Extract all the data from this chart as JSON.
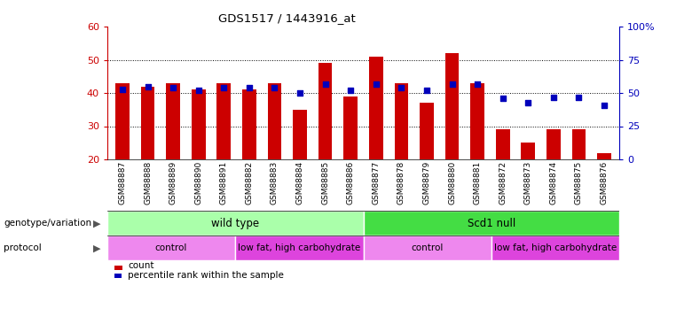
{
  "title": "GDS1517 / 1443916_at",
  "samples": [
    "GSM88887",
    "GSM88888",
    "GSM88889",
    "GSM88890",
    "GSM88891",
    "GSM88882",
    "GSM88883",
    "GSM88884",
    "GSM88885",
    "GSM88886",
    "GSM88877",
    "GSM88878",
    "GSM88879",
    "GSM88880",
    "GSM88881",
    "GSM88872",
    "GSM88873",
    "GSM88874",
    "GSM88875",
    "GSM88876"
  ],
  "red_values": [
    43,
    42,
    43,
    41,
    43,
    41,
    43,
    35,
    49,
    39,
    51,
    43,
    37,
    52,
    43,
    29,
    25,
    29,
    29,
    22
  ],
  "blue_pct": [
    53,
    55,
    54,
    52,
    54,
    54,
    54,
    50,
    57,
    52,
    57,
    54,
    52,
    57,
    57,
    46,
    43,
    47,
    47,
    41
  ],
  "ymin": 20,
  "ymax": 60,
  "yticks_left": [
    20,
    30,
    40,
    50,
    60
  ],
  "yticks_right": [
    0,
    25,
    50,
    75,
    100
  ],
  "bar_color": "#cc0000",
  "dot_color": "#0000bb",
  "left_tick_color": "#cc0000",
  "right_tick_color": "#0000bb",
  "genotype_groups": [
    {
      "label": "wild type",
      "start": 0,
      "end": 10,
      "color": "#aaffaa"
    },
    {
      "label": "Scd1 null",
      "start": 10,
      "end": 20,
      "color": "#44dd44"
    }
  ],
  "protocol_groups": [
    {
      "label": "control",
      "start": 0,
      "end": 5,
      "color": "#ee88ee"
    },
    {
      "label": "low fat, high carbohydrate",
      "start": 5,
      "end": 10,
      "color": "#dd44dd"
    },
    {
      "label": "control",
      "start": 10,
      "end": 15,
      "color": "#ee88ee"
    },
    {
      "label": "low fat, high carbohydrate",
      "start": 15,
      "end": 20,
      "color": "#dd44dd"
    }
  ],
  "legend_labels": [
    "count",
    "percentile rank within the sample"
  ],
  "legend_colors": [
    "#cc0000",
    "#0000bb"
  ],
  "grid_yticks": [
    30,
    40,
    50
  ],
  "background_color": "#ffffff"
}
